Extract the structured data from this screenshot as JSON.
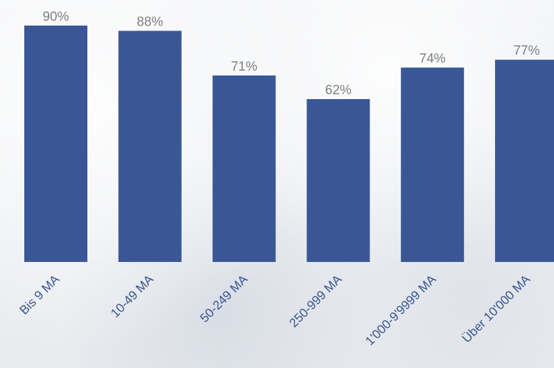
{
  "chart_data": {
    "type": "bar",
    "categories": [
      "Bis 9 MA",
      "10-49 MA",
      "50-249 MA",
      "250-999 MA",
      "1'000-9'9999 MA",
      "Über 10'000 MA"
    ],
    "values": [
      90,
      88,
      71,
      62,
      74,
      77
    ],
    "value_labels": [
      "90%",
      "88%",
      "71%",
      "62%",
      "74%",
      "77%"
    ],
    "unit": "%",
    "ylim": [
      0,
      100
    ],
    "grid": false,
    "legend": "none",
    "colors": {
      "bar": "#3a5795",
      "value_label": "#7f7f7f",
      "tick_label": "#3a5795"
    }
  }
}
